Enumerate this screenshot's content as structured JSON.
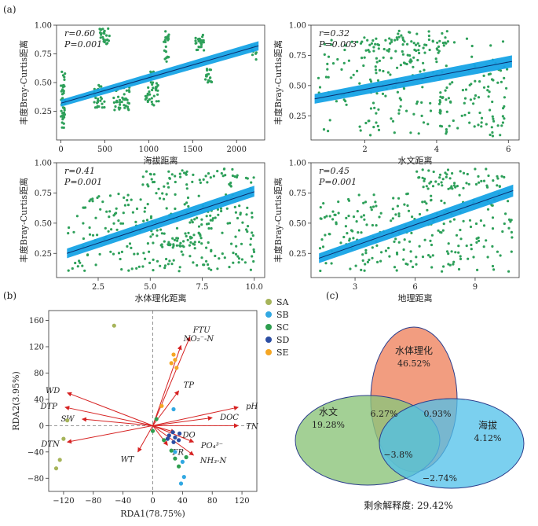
{
  "panel_labels": {
    "a": "(a)",
    "b": "(b)",
    "c": "(c)"
  },
  "chart_data": [
    {
      "type": "scatter",
      "id": "a1",
      "xlabel": "海拔距离",
      "ylabel": "丰度Bray-Curtis距离",
      "xlim": [
        -50,
        2320
      ],
      "ylim": [
        0.0,
        1.0
      ],
      "xticks": [
        0,
        500,
        1000,
        1500,
        2000
      ],
      "yticks": [
        0.25,
        0.5,
        0.75,
        1.0
      ],
      "r_text": "r=0.60",
      "p_text": "P=0.001",
      "fit": {
        "x": [
          0,
          2250
        ],
        "y": [
          0.32,
          0.82
        ],
        "band": [
          [
            0.29,
            0.35
          ],
          [
            0.78,
            0.86
          ]
        ]
      },
      "clusters": [
        {
          "x": [
            0,
            50
          ],
          "y": [
            0.1,
            0.6
          ],
          "n": 45
        },
        {
          "x": [
            380,
            500
          ],
          "y": [
            0.28,
            0.48
          ],
          "n": 30
        },
        {
          "x": [
            440,
            560
          ],
          "y": [
            0.82,
            0.97
          ],
          "n": 25
        },
        {
          "x": [
            600,
            780
          ],
          "y": [
            0.26,
            0.46
          ],
          "n": 40
        },
        {
          "x": [
            960,
            1120
          ],
          "y": [
            0.3,
            0.5
          ],
          "n": 30
        },
        {
          "x": [
            1000,
            1060
          ],
          "y": [
            0.5,
            0.6
          ],
          "n": 10
        },
        {
          "x": [
            1170,
            1230
          ],
          "y": [
            0.68,
            0.95
          ],
          "n": 22
        },
        {
          "x": [
            1530,
            1630
          ],
          "y": [
            0.78,
            0.92
          ],
          "n": 25
        },
        {
          "x": [
            1640,
            1720
          ],
          "y": [
            0.5,
            0.62
          ],
          "n": 18
        },
        {
          "x": [
            2170,
            2230
          ],
          "y": [
            0.7,
            0.85
          ],
          "n": 10
        }
      ]
    },
    {
      "type": "scatter",
      "id": "a2",
      "xlabel": "水文距离",
      "ylabel": "丰度Bray-Curtis距离",
      "xlim": [
        0.5,
        6.3
      ],
      "ylim": [
        0.05,
        1.0
      ],
      "xticks": [
        2,
        4,
        6
      ],
      "yticks": [
        0.25,
        0.5,
        0.75,
        1.0
      ],
      "r_text": "r=0.32",
      "p_text": "P=0.003",
      "fit": {
        "x": [
          0.6,
          6.1
        ],
        "y": [
          0.39,
          0.7
        ],
        "band": [
          [
            0.35,
            0.43
          ],
          [
            0.65,
            0.75
          ]
        ]
      },
      "clusters": [
        {
          "x": [
            0.7,
            6.0
          ],
          "y": [
            0.08,
            0.9
          ],
          "n": 260
        },
        {
          "x": [
            2.0,
            4.5
          ],
          "y": [
            0.78,
            0.96
          ],
          "n": 50
        }
      ]
    },
    {
      "type": "scatter",
      "id": "a3",
      "xlabel": "水体理化距离",
      "ylabel": "丰度Bray-Curtis距离",
      "xlim": [
        0.5,
        10.5
      ],
      "ylim": [
        0.05,
        1.0
      ],
      "xticks": [
        2.5,
        5.0,
        7.5,
        10.0
      ],
      "yticks": [
        0.25,
        0.5,
        0.75,
        1.0
      ],
      "r_text": "r=0.41",
      "p_text": "P=0.001",
      "fit": {
        "x": [
          1.0,
          10.0
        ],
        "y": [
          0.25,
          0.76
        ],
        "band": [
          [
            0.21,
            0.29
          ],
          [
            0.72,
            0.81
          ]
        ]
      },
      "clusters": [
        {
          "x": [
            1.0,
            10.0
          ],
          "y": [
            0.1,
            0.75
          ],
          "n": 240
        },
        {
          "x": [
            4.5,
            10.0
          ],
          "y": [
            0.78,
            0.95
          ],
          "n": 60
        },
        {
          "x": [
            5.5,
            7.5
          ],
          "y": [
            0.3,
            0.42
          ],
          "n": 40
        }
      ]
    },
    {
      "type": "scatter",
      "id": "a4",
      "xlabel": "地理距离",
      "ylabel": "丰度Bray-Curtis距离",
      "xlim": [
        0.8,
        11.2
      ],
      "ylim": [
        0.05,
        1.0
      ],
      "xticks": [
        3,
        6,
        9
      ],
      "yticks": [
        0.25,
        0.5,
        0.75,
        1.0
      ],
      "r_text": "r=0.45",
      "p_text": "P=0.001",
      "fit": {
        "x": [
          1.2,
          10.9
        ],
        "y": [
          0.21,
          0.77
        ],
        "band": [
          [
            0.17,
            0.25
          ],
          [
            0.72,
            0.82
          ]
        ]
      },
      "clusters": [
        {
          "x": [
            1.2,
            10.9
          ],
          "y": [
            0.1,
            0.75
          ],
          "n": 240
        },
        {
          "x": [
            6.0,
            10.5
          ],
          "y": [
            0.78,
            0.95
          ],
          "n": 60
        }
      ]
    },
    {
      "type": "scatter",
      "id": "b",
      "xlabel": "RDA1(78.75%)",
      "ylabel": "RDA2(3.95%)",
      "xlim": [
        -140,
        140
      ],
      "ylim": [
        -100,
        175
      ],
      "xticks": [
        -120,
        -80,
        -40,
        0,
        40,
        80,
        120
      ],
      "yticks": [
        160,
        120,
        80,
        40,
        0,
        -40,
        -80
      ],
      "legend_position": "right",
      "series": [
        {
          "name": "SA",
          "color": "#a6b45a",
          "points": [
            [
              -52,
              152
            ],
            [
              -115,
              8
            ],
            [
              -120,
              -20
            ],
            [
              -125,
              -52
            ],
            [
              -130,
              -65
            ]
          ]
        },
        {
          "name": "SB",
          "color": "#31a8e2",
          "points": [
            [
              28,
              25
            ],
            [
              40,
              -55
            ],
            [
              42,
              -78
            ],
            [
              38,
              -88
            ],
            [
              30,
              -40
            ]
          ]
        },
        {
          "name": "SC",
          "color": "#2e9e4f",
          "points": [
            [
              5,
              10
            ],
            [
              0,
              -8
            ],
            [
              15,
              -22
            ],
            [
              25,
              -38
            ],
            [
              30,
              -50
            ],
            [
              45,
              -48
            ],
            [
              35,
              -62
            ]
          ]
        },
        {
          "name": "SD",
          "color": "#2c4ea3",
          "points": [
            [
              22,
              -15
            ],
            [
              27,
              -10
            ],
            [
              30,
              -18
            ],
            [
              35,
              -22
            ],
            [
              28,
              -25
            ],
            [
              36,
              -12
            ],
            [
              20,
              -20
            ]
          ]
        },
        {
          "name": "SE",
          "color": "#f5a623",
          "points": [
            [
              28,
              108
            ],
            [
              30,
              100
            ],
            [
              25,
              95
            ],
            [
              32,
              88
            ],
            [
              12,
              30
            ]
          ]
        }
      ],
      "arrows": [
        {
          "label": "FTU",
          "x": 50,
          "y": 135
        },
        {
          "label": "NO₂⁻-N",
          "x": 38,
          "y": 122
        },
        {
          "label": "TP",
          "x": 35,
          "y": 53
        },
        {
          "label": "pH",
          "x": 115,
          "y": 28
        },
        {
          "label": "DOC",
          "x": 80,
          "y": 12
        },
        {
          "label": "TN",
          "x": 115,
          "y": 0
        },
        {
          "label": "DO",
          "x": 30,
          "y": -10
        },
        {
          "label": "PO₄³⁻",
          "x": 55,
          "y": -25
        },
        {
          "label": "NH₃-N",
          "x": 55,
          "y": -45
        },
        {
          "label": "FR",
          "x": 20,
          "y": -30
        },
        {
          "label": "WT",
          "x": -20,
          "y": -40
        },
        {
          "label": "WD",
          "x": -115,
          "y": 50
        },
        {
          "label": "DTP",
          "x": -118,
          "y": 28
        },
        {
          "label": "SW",
          "x": -95,
          "y": 10
        },
        {
          "label": "DTN",
          "x": -115,
          "y": -25
        }
      ]
    },
    {
      "type": "venn",
      "id": "c",
      "sets": [
        {
          "name": "水文",
          "value": "19.28%",
          "color": "#8cc47a"
        },
        {
          "name": "水体理化",
          "value": "46.52%",
          "color": "#f08c6a"
        },
        {
          "name": "海拔",
          "value": "4.12%",
          "color": "#4fc0ea"
        }
      ],
      "overlaps": [
        {
          "sets": [
            "水文",
            "水体理化"
          ],
          "value": "6.27%"
        },
        {
          "sets": [
            "水体理化",
            "海拔"
          ],
          "value": "0.93%"
        },
        {
          "sets": [
            "水文",
            "水体理化",
            "海拔"
          ],
          "value": "−3.8%"
        },
        {
          "sets": [
            "水文",
            "海拔"
          ],
          "value": "−2.74%"
        }
      ],
      "residual_text": "剩余解释度: 29.42%"
    }
  ]
}
